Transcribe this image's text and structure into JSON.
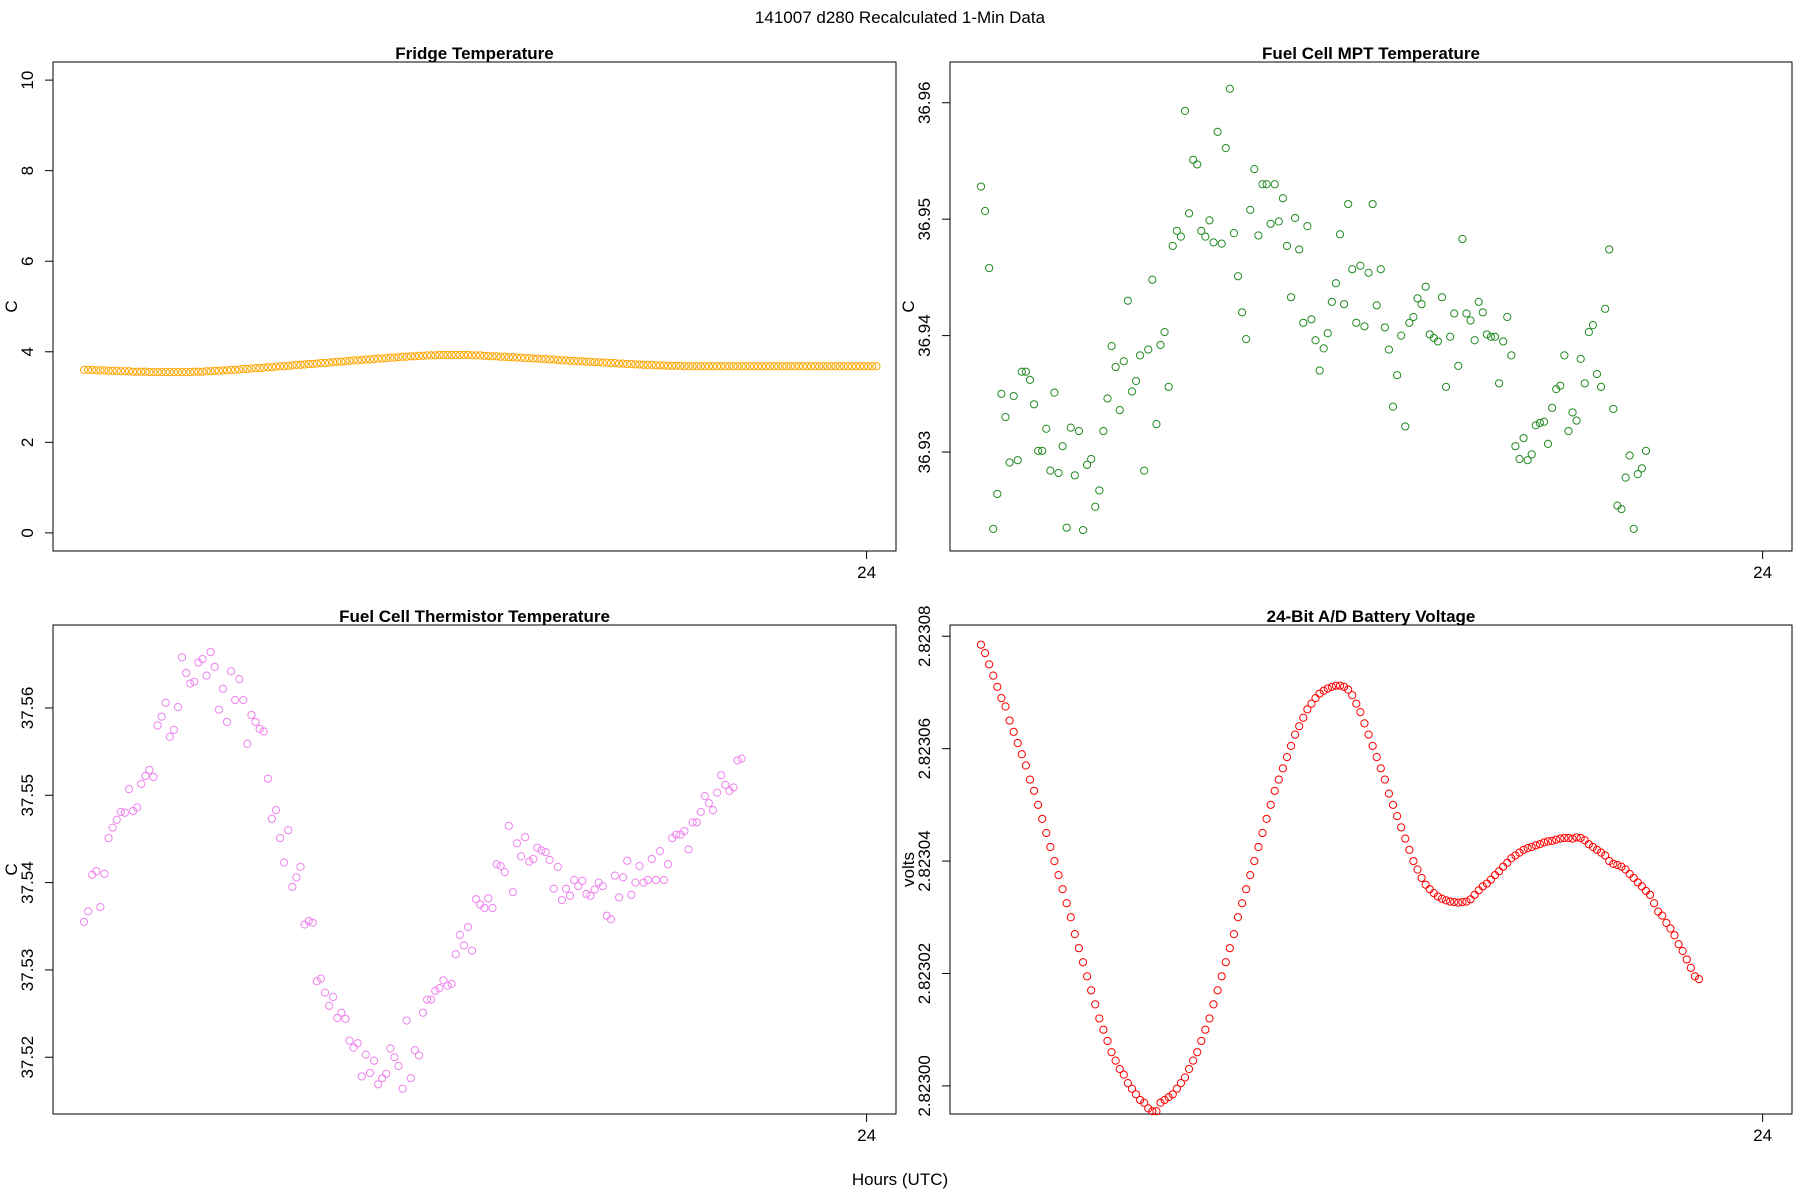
{
  "suptitle": "141007   d280   Recalculated 1-Min Data",
  "xlabel": "Hours (UTC)",
  "chart_data": [
    {
      "type": "scatter",
      "title": "Fridge Temperature",
      "ylabel": "C",
      "color": "#FFA500",
      "ylim": [
        -0.4,
        10.4
      ],
      "yticks": [
        0,
        2,
        4,
        6,
        8,
        10
      ],
      "ytick_labels": [
        "0",
        "2",
        "4",
        "6",
        "8",
        "10"
      ],
      "xlim": [
        -0.9,
        24.9
      ],
      "xticks": [
        24
      ],
      "xtick_labels": [
        "24"
      ],
      "x_start": 0.05,
      "x_step": 0.125,
      "values": [
        3.6,
        3.6,
        3.6,
        3.59,
        3.59,
        3.59,
        3.58,
        3.58,
        3.58,
        3.57,
        3.57,
        3.57,
        3.56,
        3.56,
        3.56,
        3.56,
        3.55,
        3.55,
        3.55,
        3.55,
        3.55,
        3.55,
        3.55,
        3.55,
        3.55,
        3.55,
        3.55,
        3.56,
        3.56,
        3.56,
        3.57,
        3.57,
        3.58,
        3.58,
        3.59,
        3.59,
        3.6,
        3.6,
        3.61,
        3.62,
        3.62,
        3.63,
        3.64,
        3.64,
        3.65,
        3.66,
        3.66,
        3.67,
        3.68,
        3.68,
        3.69,
        3.7,
        3.71,
        3.71,
        3.72,
        3.73,
        3.73,
        3.74,
        3.75,
        3.75,
        3.76,
        3.77,
        3.78,
        3.78,
        3.79,
        3.8,
        3.81,
        3.81,
        3.82,
        3.83,
        3.83,
        3.84,
        3.85,
        3.85,
        3.86,
        3.87,
        3.87,
        3.88,
        3.89,
        3.89,
        3.9,
        3.9,
        3.91,
        3.91,
        3.92,
        3.92,
        3.92,
        3.93,
        3.93,
        3.93,
        3.93,
        3.93,
        3.93,
        3.93,
        3.93,
        3.92,
        3.92,
        3.92,
        3.91,
        3.91,
        3.9,
        3.9,
        3.89,
        3.89,
        3.88,
        3.88,
        3.87,
        3.87,
        3.86,
        3.86,
        3.85,
        3.85,
        3.84,
        3.84,
        3.83,
        3.83,
        3.82,
        3.81,
        3.81,
        3.8,
        3.8,
        3.79,
        3.79,
        3.78,
        3.78,
        3.77,
        3.77,
        3.76,
        3.76,
        3.75,
        3.75,
        3.74,
        3.74,
        3.73,
        3.73,
        3.72,
        3.72,
        3.71,
        3.71,
        3.71,
        3.7,
        3.7,
        3.7,
        3.69,
        3.69,
        3.69,
        3.69,
        3.68,
        3.68,
        3.68,
        3.68,
        3.68,
        3.68,
        3.68,
        3.68,
        3.68,
        3.68,
        3.68,
        3.68,
        3.68,
        3.68,
        3.68,
        3.68,
        3.68,
        3.68,
        3.68,
        3.68,
        3.68,
        3.68,
        3.68,
        3.68,
        3.68,
        3.68,
        3.68,
        3.68,
        3.68,
        3.68,
        3.68,
        3.68,
        3.68,
        3.68,
        3.68,
        3.68,
        3.68,
        3.68,
        3.68,
        3.68,
        3.68,
        3.68,
        3.68,
        3.68,
        3.68,
        3.68,
        3.68,
        3.68
      ]
    },
    {
      "type": "scatter",
      "title": "Fuel Cell MPT Temperature",
      "ylabel": "C",
      "color": "#228B22",
      "ylim": [
        36.9215,
        36.9635
      ],
      "yticks": [
        36.93,
        36.94,
        36.95,
        36.96
      ],
      "ytick_labels": [
        "36.93",
        "36.94",
        "36.95",
        "36.96"
      ],
      "xlim": [
        -0.9,
        24.9
      ],
      "xticks": [
        24
      ],
      "xtick_labels": [
        "24"
      ],
      "x_start": 0.05,
      "x_step": 0.125,
      "values": [
        36.9528,
        36.9507,
        36.9458,
        36.9234,
        36.9264,
        36.935,
        36.933,
        36.9291,
        36.9348,
        36.9293,
        36.9369,
        36.9369,
        36.9362,
        36.9341,
        36.9301,
        36.9301,
        36.932,
        36.9284,
        36.9351,
        36.9282,
        36.9305,
        36.9235,
        36.9321,
        36.928,
        36.9318,
        36.9233,
        36.9289,
        36.9294,
        36.9253,
        36.9267,
        36.9318,
        36.9346,
        36.9391,
        36.9373,
        36.9336,
        36.9378,
        36.943,
        36.9352,
        36.9361,
        36.9383,
        36.9284,
        36.9388,
        36.9448,
        36.9324,
        36.9392,
        36.9403,
        36.9356,
        36.9477,
        36.949,
        36.9485,
        36.9593,
        36.9505,
        36.9551,
        36.9547,
        36.949,
        36.9485,
        36.9499,
        36.948,
        36.9575,
        36.9479,
        36.9561,
        36.9612,
        36.9488,
        36.9451,
        36.942,
        36.9397,
        36.9508,
        36.9543,
        36.9486,
        36.953,
        36.953,
        36.9496,
        36.953,
        36.9498,
        36.9518,
        36.9477,
        36.9433,
        36.9501,
        36.9474,
        36.9411,
        36.9494,
        36.9414,
        36.9396,
        36.937,
        36.9389,
        36.9402,
        36.9429,
        36.9445,
        36.9487,
        36.9427,
        36.9513,
        36.9457,
        36.9411,
        36.946,
        36.9408,
        36.9454,
        36.9513,
        36.9426,
        36.9457,
        36.9407,
        36.9388,
        36.9339,
        36.9366,
        36.94,
        36.9322,
        36.9411,
        36.9416,
        36.9432,
        36.9427,
        36.9442,
        36.9401,
        36.9398,
        36.9395,
        36.9433,
        36.9356,
        36.9399,
        36.9419,
        36.9374,
        36.9483,
        36.9419,
        36.9413,
        36.9396,
        36.9429,
        36.942,
        36.9401,
        36.9399,
        36.9399,
        36.9359,
        36.9395,
        36.9416,
        36.9383,
        36.9305,
        36.9294,
        36.9312,
        36.9293,
        36.9298,
        36.9323,
        36.9325,
        36.9326,
        36.9307,
        36.9338,
        36.9354,
        36.9357,
        36.9383,
        36.9318,
        36.9334,
        36.9327,
        36.938,
        36.9359,
        36.9403,
        36.9409,
        36.9367,
        36.9356,
        36.9423,
        36.9474,
        36.9337,
        36.9254,
        36.9251,
        36.9278,
        36.9297,
        36.9234,
        36.9281,
        36.9286,
        36.9301
      ]
    },
    {
      "type": "scatter",
      "title": "Fuel Cell Thermistor Temperature",
      "ylabel": "C",
      "color": "#EE82EE",
      "ylim": [
        37.5135,
        37.5695
      ],
      "yticks": [
        37.52,
        37.53,
        37.54,
        37.55,
        37.56
      ],
      "ytick_labels": [
        "37.52",
        "37.53",
        "37.54",
        "37.55",
        "37.56"
      ],
      "xlim": [
        -0.9,
        24.9
      ],
      "xticks": [
        24
      ],
      "xtick_labels": [
        "24"
      ],
      "x_start": 0.05,
      "x_step": 0.125,
      "values": [
        37.5355,
        37.5367,
        37.5409,
        37.5413,
        37.5372,
        37.541,
        37.5451,
        37.5463,
        37.5472,
        37.5481,
        37.548,
        37.5507,
        37.5482,
        37.5486,
        37.5513,
        37.5522,
        37.5529,
        37.5521,
        37.558,
        37.559,
        37.5606,
        37.5567,
        37.5575,
        37.5601,
        37.5658,
        37.564,
        37.5628,
        37.563,
        37.5652,
        37.5656,
        37.5637,
        37.5664,
        37.5647,
        37.5598,
        37.5622,
        37.5584,
        37.5642,
        37.5609,
        37.5633,
        37.5609,
        37.5559,
        37.5592,
        37.5584,
        37.5576,
        37.5573,
        37.5519,
        37.5473,
        37.5483,
        37.5451,
        37.5423,
        37.546,
        37.5395,
        37.5406,
        37.5418,
        37.5352,
        37.5356,
        37.5354,
        37.5287,
        37.529,
        37.5274,
        37.5259,
        37.5269,
        37.5245,
        37.5251,
        37.5244,
        37.5219,
        37.5211,
        37.5216,
        37.5178,
        37.5203,
        37.5182,
        37.5196,
        37.5169,
        37.5176,
        37.5181,
        37.521,
        37.52,
        37.519,
        37.5164,
        37.5242,
        37.5176,
        37.5208,
        37.5202,
        37.5251,
        37.5266,
        37.5266,
        37.5276,
        37.5279,
        37.5288,
        37.5282,
        37.5284,
        37.5318,
        37.534,
        37.5328,
        37.5349,
        37.5322,
        37.5381,
        37.5375,
        37.5371,
        37.5382,
        37.5371,
        37.5421,
        37.5419,
        37.5412,
        37.5465,
        37.5389,
        37.5445,
        37.543,
        37.5452,
        37.5424,
        37.5427,
        37.544,
        37.5437,
        37.5435,
        37.5426,
        37.5393,
        37.5418,
        37.538,
        37.5393,
        37.5385,
        37.5403,
        37.5396,
        37.5402,
        37.5387,
        37.5385,
        37.5392,
        37.54,
        37.5396,
        37.5362,
        37.5358,
        37.5408,
        37.5383,
        37.5406,
        37.5425,
        37.5386,
        37.54,
        37.5419,
        37.54,
        37.5403,
        37.5427,
        37.5403,
        37.5436,
        37.5403,
        37.5421,
        37.5451,
        37.5455,
        37.5455,
        37.5459,
        37.5438,
        37.5469,
        37.5469,
        37.5481,
        37.5499,
        37.5491,
        37.5483,
        37.5503,
        37.5523,
        37.5512,
        37.5505,
        37.5509,
        37.554,
        37.5542
      ]
    },
    {
      "type": "scatter",
      "title": "24-Bit A/D Battery Voltage",
      "ylabel": "volts",
      "color": "#FF0000",
      "ylim": [
        2.822995,
        2.823082
      ],
      "yticks": [
        2.823,
        2.82302,
        2.82304,
        2.82306,
        2.82308
      ],
      "ytick_labels": [
        "2.82300",
        "2.82302",
        "2.82304",
        "2.82306",
        "2.82308"
      ],
      "xlim": [
        -0.9,
        24.9
      ],
      "xticks": [
        24
      ],
      "xtick_labels": [
        "24"
      ],
      "x_start": 0.05,
      "x_step": 0.125,
      "values": [
        2.8230785,
        2.823077,
        2.823075,
        2.823073,
        2.823071,
        2.823069,
        2.8230675,
        2.823065,
        2.823063,
        2.823061,
        2.823059,
        2.823057,
        2.8230545,
        2.8230525,
        2.82305,
        2.8230475,
        2.823045,
        2.8230425,
        2.82304,
        2.8230375,
        2.823035,
        2.8230325,
        2.82303,
        2.823027,
        2.8230245,
        2.823022,
        2.8230195,
        2.823017,
        2.8230145,
        2.823012,
        2.82301,
        2.823008,
        2.823006,
        2.8230045,
        2.823003,
        2.823002,
        2.8230005,
        2.8229995,
        2.8229985,
        2.8229975,
        2.822997,
        2.822996,
        2.8229955,
        2.8229955,
        2.822997,
        2.8229975,
        2.822998,
        2.8229985,
        2.8229995,
        2.8230005,
        2.8230015,
        2.823003,
        2.8230045,
        2.823006,
        2.823008,
        2.82301,
        2.823012,
        2.8230145,
        2.823017,
        2.8230195,
        2.823022,
        2.8230245,
        2.823027,
        2.82303,
        2.8230325,
        2.823035,
        2.8230375,
        2.82304,
        2.8230425,
        2.823045,
        2.8230475,
        2.82305,
        2.8230525,
        2.8230545,
        2.8230565,
        2.8230585,
        2.8230605,
        2.8230625,
        2.823064,
        2.8230655,
        2.823067,
        2.823068,
        2.823069,
        2.8230698,
        2.8230703,
        2.8230707,
        2.823071,
        2.8230712,
        2.8230712,
        2.823071,
        2.8230705,
        2.8230695,
        2.823068,
        2.8230665,
        2.8230645,
        2.8230625,
        2.8230605,
        2.8230585,
        2.8230565,
        2.8230545,
        2.823052,
        2.82305,
        2.823048,
        2.823046,
        2.823044,
        2.823042,
        2.82304,
        2.8230385,
        2.823037,
        2.8230358,
        2.823035,
        2.8230343,
        2.8230337,
        2.8230333,
        2.823033,
        2.8230328,
        2.8230327,
        2.8230326,
        2.8230327,
        2.8230328,
        2.8230332,
        2.823034,
        2.8230348,
        2.8230355,
        2.823036,
        2.8230367,
        2.8230375,
        2.8230382,
        2.823039,
        2.8230397,
        2.8230405,
        2.823041,
        2.8230415,
        2.823042,
        2.8230423,
        2.8230425,
        2.8230428,
        2.823043,
        2.8230433,
        2.8230435,
        2.8230436,
        2.8230438,
        2.823044,
        2.8230441,
        2.8230441,
        2.823044,
        2.8230442,
        2.8230441,
        2.8230437,
        2.823043,
        2.8230425,
        2.823042,
        2.8230415,
        2.823041,
        2.82304,
        2.8230395,
        2.8230393,
        2.823039,
        2.8230385,
        2.8230377,
        2.823037,
        2.8230362,
        2.8230355,
        2.8230347,
        2.823034,
        2.8230325,
        2.823031,
        2.8230303,
        2.823029,
        2.823028,
        2.8230268,
        2.8230252,
        2.823024,
        2.8230225,
        2.823021,
        2.8230195,
        2.823019
      ]
    }
  ]
}
